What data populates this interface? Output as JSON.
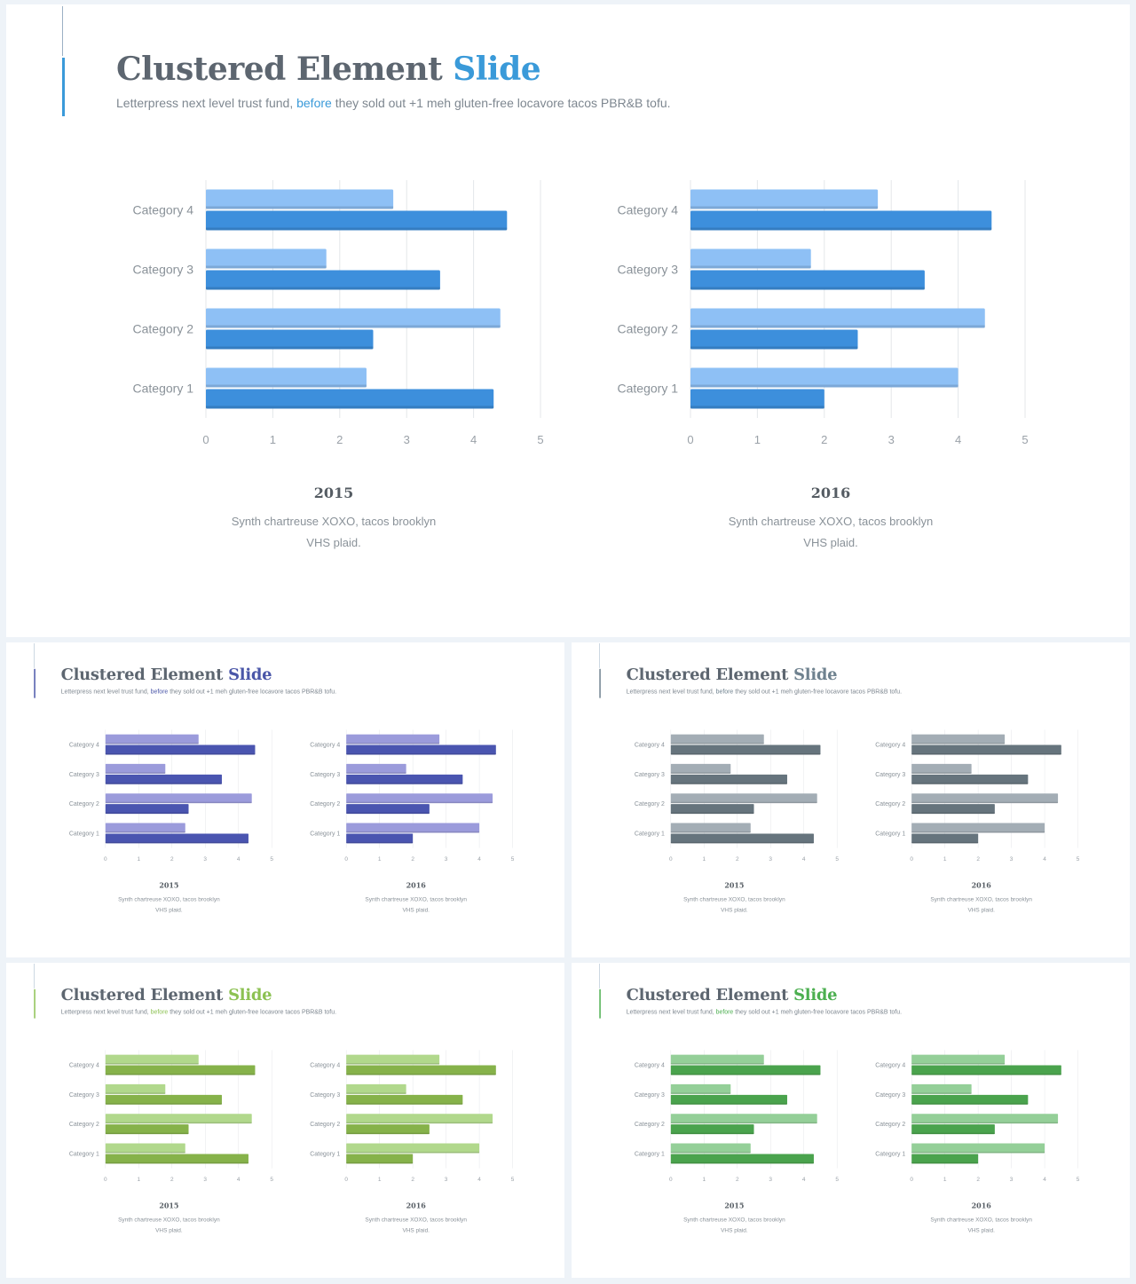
{
  "slide": {
    "title_main": "Clustered Element",
    "title_accent": "Slide",
    "subtitle_pre": "Letterpress next level trust fund, ",
    "subtitle_link": "before",
    "subtitle_post": " they sold out +1 meh gluten-free locavore tacos PBR&B tofu."
  },
  "captions": [
    {
      "year": "2015",
      "text": "Synth chartreuse XOXO, tacos brooklyn VHS plaid."
    },
    {
      "year": "2016",
      "text": "Synth chartreuse XOXO, tacos brooklyn VHS plaid."
    }
  ],
  "themes": [
    {
      "name": "blue",
      "accent": "#3a9ad9",
      "light": "#8ec0f5",
      "dark": "#3d8fdc"
    },
    {
      "name": "indigo",
      "accent": "#4a56a8",
      "light": "#9b9bdb",
      "dark": "#4a55b0"
    },
    {
      "name": "slate",
      "accent": "#6f828f",
      "light": "#a3adb5",
      "dark": "#66747d"
    },
    {
      "name": "olive-green",
      "accent": "#8cc152",
      "light": "#b1d88c",
      "dark": "#86b24a"
    },
    {
      "name": "green",
      "accent": "#4caf50",
      "light": "#94cf98",
      "dark": "#4aa34d"
    }
  ],
  "chart_data": [
    {
      "type": "bar",
      "orientation": "horizontal",
      "categories": [
        "Category 1",
        "Category 2",
        "Category 3",
        "Category 4"
      ],
      "series": [
        {
          "values": [
            2.4,
            4.4,
            1.8,
            2.8
          ]
        },
        {
          "values": [
            4.3,
            2.5,
            3.5,
            4.5
          ]
        }
      ],
      "xlim": [
        0,
        5
      ],
      "xticks": [
        "0",
        "1",
        "2",
        "3",
        "4",
        "5"
      ],
      "grid": true
    },
    {
      "type": "bar",
      "orientation": "horizontal",
      "categories": [
        "Category 1",
        "Category 2",
        "Category 3",
        "Category 4"
      ],
      "series": [
        {
          "values": [
            4.0,
            4.4,
            1.8,
            2.8
          ]
        },
        {
          "values": [
            2.0,
            2.5,
            3.5,
            4.5
          ]
        }
      ],
      "xlim": [
        0,
        5
      ],
      "xticks": [
        "0",
        "1",
        "2",
        "3",
        "4",
        "5"
      ],
      "grid": true
    }
  ]
}
